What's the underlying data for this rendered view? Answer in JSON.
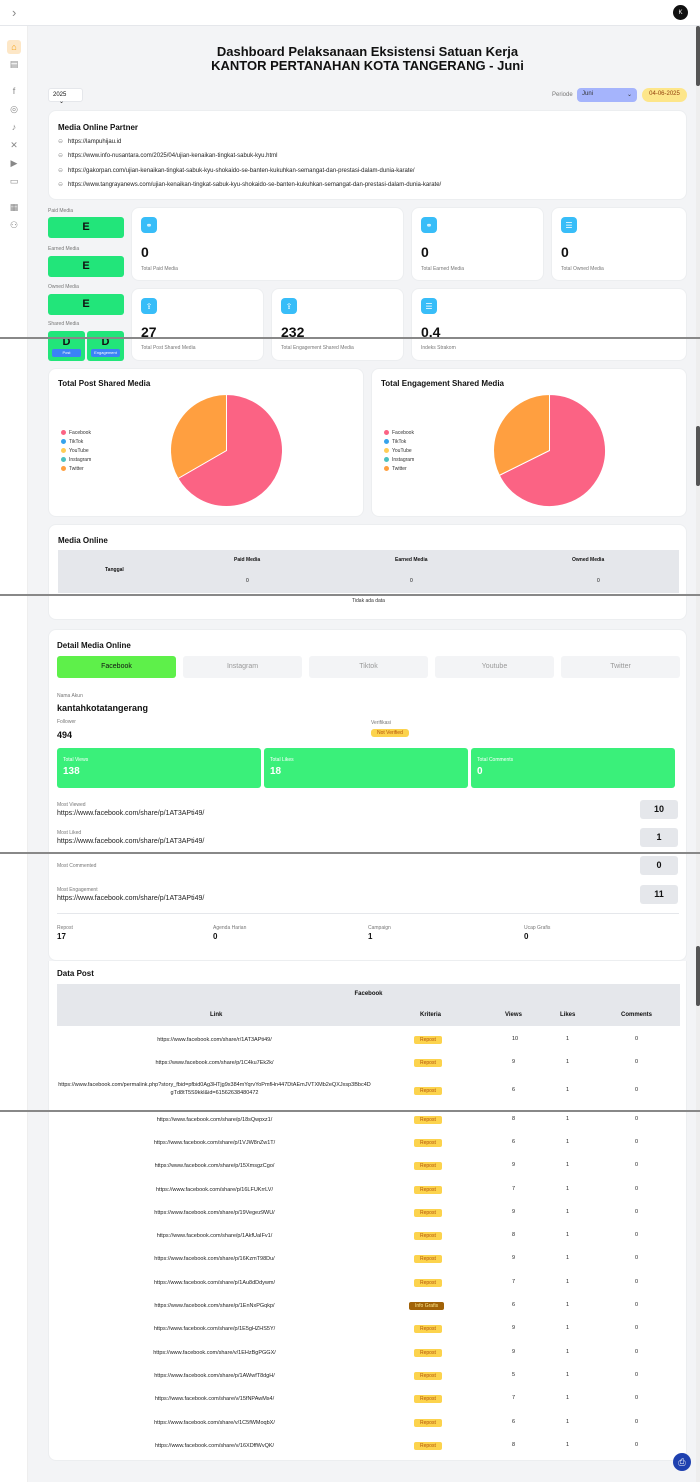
{
  "topbar": {
    "avatar": "K",
    "expand_icon": "chevron-right-icon"
  },
  "sidebar": {
    "icons": [
      "home-icon",
      "document-icon",
      "facebook-icon",
      "instagram-icon",
      "tiktok-icon",
      "x-icon",
      "youtube-icon",
      "cast-icon",
      "report-icon",
      "users-icon"
    ]
  },
  "header": {
    "title_line1": "Dashboard Pelaksanaan Eksistensi Satuan Kerja",
    "title_line2": "KANTOR PERTANAHAN KOTA TANGERANG - Juni"
  },
  "filters": {
    "year": "2025",
    "periode_label": "Periode",
    "month": "Juni",
    "date": "04-06-2025"
  },
  "media_partner": {
    "title": "Media Online Partner",
    "links": [
      "https://lampuhijau.id",
      "https://www.info-nusantara.com/2025/04/ujian-kenaikan-tingkat-sabuk-kyu.html",
      "https://gakorpan.com/ujian-kenaikan-tingkat-sabuk-kyu-shokaido-se-banten-kukuhkan-semangat-dan-prestasi-dalam-dunia-karate/",
      "https://www.tangrayanews.com/ujian-kenaikan-tingkat-sabuk-kyu-shokaido-se-banten-kukuhkan-semangat-dan-prestasi-dalam-dunia-karate/"
    ]
  },
  "grades": {
    "paid_label": "Paid Media",
    "paid": "E",
    "earned_label": "Earned Media",
    "earned": "E",
    "owned_label": "Owned Media",
    "owned": "E",
    "shared_label": "Shared Media",
    "shared_post": "D",
    "shared_engagement": "D",
    "post_pill": "Post",
    "engagement_pill": "Engagement"
  },
  "stats": [
    {
      "value": "0",
      "label": "Total Paid Media"
    },
    {
      "value": "0",
      "label": "Total Earned Media"
    },
    {
      "value": "0",
      "label": "Total Owned Media"
    },
    {
      "value": "27",
      "label": "Total Post Shared Media"
    },
    {
      "value": "232",
      "label": "Total Engagement Shared Media"
    },
    {
      "value": "0.4",
      "label": "Indeks Strakom"
    }
  ],
  "pie_legend": [
    "Facebook",
    "TikTok",
    "YouTube",
    "Instagram",
    "Twitter"
  ],
  "pie_colors": [
    "#fb6384",
    "#36a2eb",
    "#ffcd56",
    "#4bc0c0",
    "#ff9f40"
  ],
  "chart_data": [
    {
      "type": "pie",
      "title": "Total Post Shared Media",
      "labels": [
        "Facebook",
        "TikTok",
        "YouTube",
        "Instagram",
        "Twitter"
      ],
      "values": [
        18,
        0,
        0,
        0,
        9
      ]
    },
    {
      "type": "pie",
      "title": "Total Engagement Shared Media",
      "labels": [
        "Facebook",
        "TikTok",
        "YouTube",
        "Instagram",
        "Twitter"
      ],
      "values": [
        157,
        0,
        0,
        0,
        75
      ]
    }
  ],
  "media_online": {
    "title": "Media Online",
    "col_tanggal": "Tanggal",
    "col_paid": "Paid Media",
    "col_earned": "Earned Media",
    "col_owned": "Owned Media",
    "paid_total": "0",
    "earned_total": "0",
    "owned_total": "0",
    "empty": "Tidak ada data"
  },
  "detail": {
    "title": "Detail Media Online",
    "tabs": [
      "Facebook",
      "Instagram",
      "Tiktok",
      "Youtube",
      "Twitter"
    ],
    "nama_akun_label": "Nama Akun",
    "nama_akun": "kantahkotatangerang",
    "follower_label": "Follower",
    "follower": "494",
    "verifikasi_label": "Verifikasi",
    "verifikasi": "Not Verified",
    "total_views_label": "Total Views",
    "total_views": "138",
    "total_likes_label": "Total Likes",
    "total_likes": "18",
    "total_comments_label": "Total Comments",
    "total_comments": "0",
    "most_viewed_label": "Most Viewed",
    "most_viewed_link": "https://www.facebook.com/share/p/1AT3APti49/",
    "most_viewed_count": "10",
    "most_liked_label": "Most Liked",
    "most_liked_link": "https://www.facebook.com/share/p/1AT3APti49/",
    "most_liked_count": "1",
    "most_commented_label": "Most Commented",
    "most_commented_count": "0",
    "most_engagement_label": "Most Engagement",
    "most_engagement_link": "https://www.facebook.com/share/p/1AT3APti49/",
    "most_engagement_count": "11",
    "repost_label": "Repost",
    "repost": "17",
    "agenda_label": "Agenda Harian",
    "agenda": "0",
    "campaign_label": "Campaign",
    "campaign": "1",
    "ucap_label": "Ucap Grafis",
    "ucap": "0"
  },
  "data_post": {
    "title": "Data Post",
    "platform": "Facebook",
    "headers": [
      "Link",
      "Kriteria",
      "Views",
      "Likes",
      "Comments"
    ],
    "rows": [
      {
        "link": "https://www.facebook.com/share/r/1AT3APti49/",
        "kriteria": "Repost",
        "views": "10",
        "likes": "1",
        "comments": "0"
      },
      {
        "link": "https://www.facebook.com/share/p/1C4ku7Ek2k/",
        "kriteria": "Repost",
        "views": "9",
        "likes": "1",
        "comments": "0"
      },
      {
        "link": "https://www.facebook.com/permalink.php?story_fbid=pfbid0Ag3HTjg9x384mYqrvYoPmfHn447DtAEmJVTXMb2eQXJxsp3Bbc4DgTd8tT5S9kkl&id=61562638480472",
        "kriteria": "Repost",
        "views": "6",
        "likes": "1",
        "comments": "0"
      },
      {
        "link": "https://www.facebook.com/share/p/18sQwpxz1/",
        "kriteria": "Repost",
        "views": "8",
        "likes": "1",
        "comments": "0"
      },
      {
        "link": "https://www.facebook.com/share/p/1VJW8nZw1T/",
        "kriteria": "Repost",
        "views": "6",
        "likes": "1",
        "comments": "0"
      },
      {
        "link": "https://www.facebook.com/share/p/15XmsgzCgo/",
        "kriteria": "Repost",
        "views": "9",
        "likes": "1",
        "comments": "0"
      },
      {
        "link": "https://www.facebook.com/share/p/16LFUKrrLV/",
        "kriteria": "Repost",
        "views": "7",
        "likes": "1",
        "comments": "0"
      },
      {
        "link": "https://www.facebook.com/share/p/19Vegez9WU/",
        "kriteria": "Repost",
        "views": "9",
        "likes": "1",
        "comments": "0"
      },
      {
        "link": "https://www.facebook.com/share/p/1AkfUaIFv1/",
        "kriteria": "Repost",
        "views": "8",
        "likes": "1",
        "comments": "0"
      },
      {
        "link": "https://www.facebook.com/share/p/16KzmT98Du/",
        "kriteria": "Repost",
        "views": "9",
        "likes": "1",
        "comments": "0"
      },
      {
        "link": "https://www.facebook.com/share/p/1Au8dDdywm/",
        "kriteria": "Repost",
        "views": "7",
        "likes": "1",
        "comments": "0"
      },
      {
        "link": "https://www.facebook.com/share/p/1EnNxPGqkp/",
        "kriteria": "Info Grafis",
        "views": "6",
        "likes": "1",
        "comments": "0"
      },
      {
        "link": "https://www.facebook.com/share/p/1E5gHZHS5Y/",
        "kriteria": "Repost",
        "views": "9",
        "likes": "1",
        "comments": "0"
      },
      {
        "link": "https://www.facebook.com/share/v/1EHzBgPGGX/",
        "kriteria": "Repost",
        "views": "9",
        "likes": "1",
        "comments": "0"
      },
      {
        "link": "https://www.facebook.com/share/p/1AWwfT8dgH/",
        "kriteria": "Repost",
        "views": "5",
        "likes": "1",
        "comments": "0"
      },
      {
        "link": "https://www.facebook.com/share/v/15fNPAwMs4/",
        "kriteria": "Repost",
        "views": "7",
        "likes": "1",
        "comments": "0"
      },
      {
        "link": "https://www.facebook.com/share/v/1C5fWMoqbX/",
        "kriteria": "Repost",
        "views": "6",
        "likes": "1",
        "comments": "0"
      },
      {
        "link": "https://www.facebook.com/share/v/16XDffWvQK/",
        "kriteria": "Repost",
        "views": "8",
        "likes": "1",
        "comments": "0"
      }
    ]
  },
  "print_icon": "printer-icon"
}
